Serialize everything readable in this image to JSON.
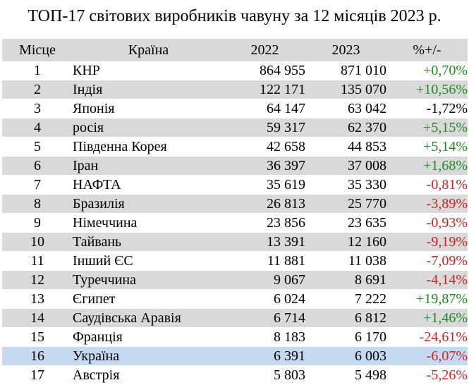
{
  "title": "ТОП-17 світових виробників чавуну за 12 місяців 2023 р.",
  "headers": {
    "place": "Місце",
    "country": "Країна",
    "y2022": "2022",
    "y2023": "2023",
    "pct": "%+/-"
  },
  "colors": {
    "positive": "#1e8b1e",
    "negative": "#cc2222",
    "stripe": "#d9d9d9",
    "highlight": "#c5d9f1"
  },
  "rows": [
    {
      "place": "1",
      "country": "КНР",
      "y2022": "864 955",
      "y2023": "871 010",
      "pct": "+0,70%",
      "sign": "pos"
    },
    {
      "place": "2",
      "country": "Індія",
      "y2022": "122 171",
      "y2023": "135 070",
      "pct": "+10,56%",
      "sign": "pos"
    },
    {
      "place": "3",
      "country": "Японія",
      "y2022": "64 147",
      "y2023": "63 042",
      "pct": "-1,72%",
      "sign": "neu"
    },
    {
      "place": "4",
      "country": "росія",
      "y2022": "59 317",
      "y2023": "62 370",
      "pct": "+5,15%",
      "sign": "pos"
    },
    {
      "place": "5",
      "country": "Південна Корея",
      "y2022": "42 658",
      "y2023": "44 853",
      "pct": "+5,14%",
      "sign": "pos"
    },
    {
      "place": "6",
      "country": "Іран",
      "y2022": "36 397",
      "y2023": "37 008",
      "pct": "+1,68%",
      "sign": "pos"
    },
    {
      "place": "7",
      "country": "НАФТА",
      "y2022": "35 619",
      "y2023": "35 330",
      "pct": "-0,81%",
      "sign": "neg"
    },
    {
      "place": "8",
      "country": "Бразилія",
      "y2022": "26 813",
      "y2023": "25 770",
      "pct": "-3,89%",
      "sign": "neg"
    },
    {
      "place": "9",
      "country": "Німеччина",
      "y2022": "23 856",
      "y2023": "23 635",
      "pct": "-0,93%",
      "sign": "neg"
    },
    {
      "place": "10",
      "country": "Тайвань",
      "y2022": "13 391",
      "y2023": "12 160",
      "pct": "-9,19%",
      "sign": "neg"
    },
    {
      "place": "11",
      "country": "Інший ЄС",
      "y2022": "11 881",
      "y2023": "11 038",
      "pct": "-7,09%",
      "sign": "neg"
    },
    {
      "place": "12",
      "country": "Туреччина",
      "y2022": "9 067",
      "y2023": "8 691",
      "pct": "-4,14%",
      "sign": "neg"
    },
    {
      "place": "13",
      "country": "Єгипет",
      "y2022": "6 024",
      "y2023": "7 222",
      "pct": "+19,87%",
      "sign": "pos"
    },
    {
      "place": "14",
      "country": "Саудівська Аравія",
      "y2022": "6 714",
      "y2023": "6 812",
      "pct": "+1,46%",
      "sign": "pos"
    },
    {
      "place": "15",
      "country": "Франція",
      "y2022": "8 183",
      "y2023": "6 170",
      "pct": "-24,61%",
      "sign": "neg"
    },
    {
      "place": "16",
      "country": "Україна",
      "y2022": "6 391",
      "y2023": "6 003",
      "pct": "-6,07%",
      "sign": "neg",
      "highlight": true
    },
    {
      "place": "17",
      "country": "Австрія",
      "y2022": "5 803",
      "y2023": "5 498",
      "pct": "-5,26%",
      "sign": "neg"
    }
  ]
}
